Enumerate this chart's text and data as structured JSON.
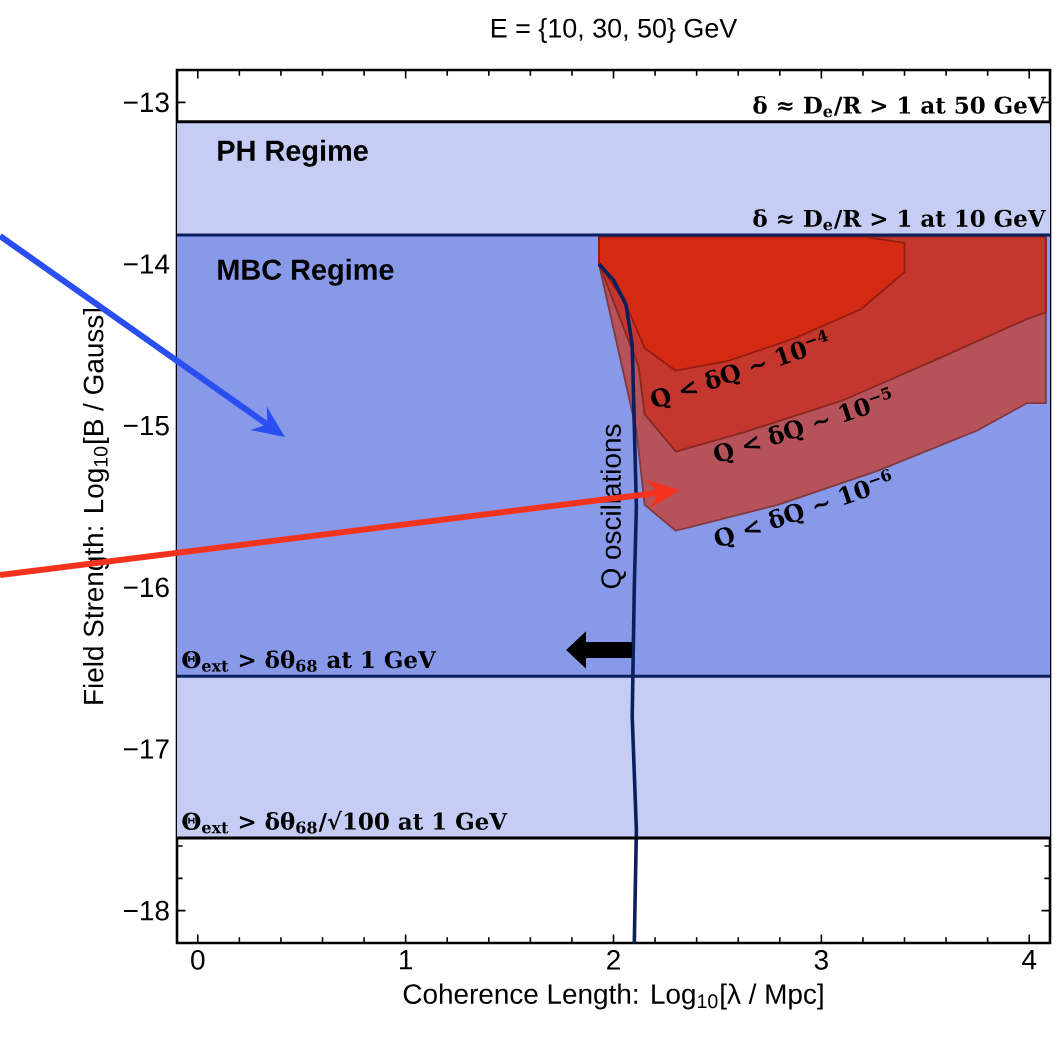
{
  "chart_data": {
    "type": "area",
    "title": "E = {10, 30, 50} GeV",
    "xlabel": "Coherence Length:  Log$_{10}$[λ / Mpc]",
    "ylabel": "Field Strength:  Log$_{10}$[B / Gauss]",
    "xlim": [
      -0.1,
      4.1
    ],
    "ylim": [
      -18.2,
      -12.8
    ],
    "xticks": [
      0,
      1,
      2,
      3,
      4
    ],
    "yticks": [
      {
        "value": -13,
        "label": "−13"
      },
      {
        "value": -14,
        "label": "−14"
      },
      {
        "value": -15,
        "label": "−15"
      },
      {
        "value": -16,
        "label": "−16"
      },
      {
        "value": -17,
        "label": "−17"
      },
      {
        "value": -18,
        "label": "−18"
      }
    ],
    "series": [
      {
        "name": "Q < δQ ~ 10$^{−6}$",
        "color": "#b5525a",
        "x": [
          1.93,
          2.11,
          2.15,
          2.3,
          2.79,
          3.27,
          3.75,
          3.99,
          4.08,
          4.08,
          1.93
        ],
        "values": [
          -14.0,
          -15.03,
          -15.49,
          -15.65,
          -15.49,
          -15.28,
          -15.03,
          -14.86,
          -14.86,
          -13.83,
          -13.83
        ]
      },
      {
        "name": "Q < δQ ~ 10$^{−5}$",
        "color": "#c4372f",
        "x": [
          1.93,
          2.12,
          2.15,
          2.3,
          2.63,
          3.11,
          3.59,
          3.99,
          4.08,
          4.08,
          1.93
        ],
        "values": [
          -14.0,
          -14.63,
          -14.93,
          -15.16,
          -15.04,
          -14.84,
          -14.57,
          -14.34,
          -14.3,
          -13.83,
          -13.83
        ]
      },
      {
        "name": "Q < δQ ~ 10$^{−4}$",
        "color": "#d42a14",
        "x": [
          1.93,
          2.04,
          2.09,
          2.15,
          2.3,
          2.55,
          2.87,
          3.19,
          3.4,
          3.4,
          3.2,
          1.93
        ],
        "values": [
          -14.0,
          -14.21,
          -14.34,
          -14.52,
          -14.66,
          -14.6,
          -14.46,
          -14.28,
          -14.05,
          -13.87,
          -13.83,
          -13.83
        ]
      },
      {
        "name": "Q oscillations",
        "type": "line",
        "color": "#0a1f5c",
        "x": [
          2.1,
          2.11,
          2.09,
          2.1,
          2.11,
          2.1,
          2.09,
          2.06,
          2.0,
          1.93
        ],
        "values": [
          -18.2,
          -17.5,
          -16.8,
          -16.0,
          -15.5,
          -15.0,
          -14.5,
          -14.25,
          -14.1,
          -14.0
        ]
      }
    ],
    "ref_lines": [
      {
        "axis": "y",
        "value": -13.12,
        "label": "δ ≈ D$_{e}$/R > 1 at 50 GeV",
        "color": "#000000"
      },
      {
        "axis": "y",
        "value": -13.82,
        "label": "δ ≈ D$_{e}$/R > 1 at 10 GeV",
        "color": "#0a1f5c"
      },
      {
        "axis": "y",
        "value": -16.55,
        "label": "Θ$_{ext}$ > δθ$_{68}$ at 1 GeV",
        "color": "#0a1f5c"
      },
      {
        "axis": "y",
        "value": -17.55,
        "label": "Θ$_{ext}$ > δθ$_{68}$/√100 at 1 GeV",
        "color": "#000000"
      }
    ],
    "bands": [
      {
        "axis": "y",
        "from": -13.82,
        "to": -13.12,
        "label": "PH Regime",
        "color": "#c5cdf4"
      },
      {
        "axis": "y",
        "from": -16.55,
        "to": -13.82,
        "label": "MBC Regime",
        "color": "#8799e8"
      },
      {
        "axis": "y",
        "from": -17.55,
        "to": -16.55,
        "color": "#c5cdf4"
      }
    ]
  }
}
